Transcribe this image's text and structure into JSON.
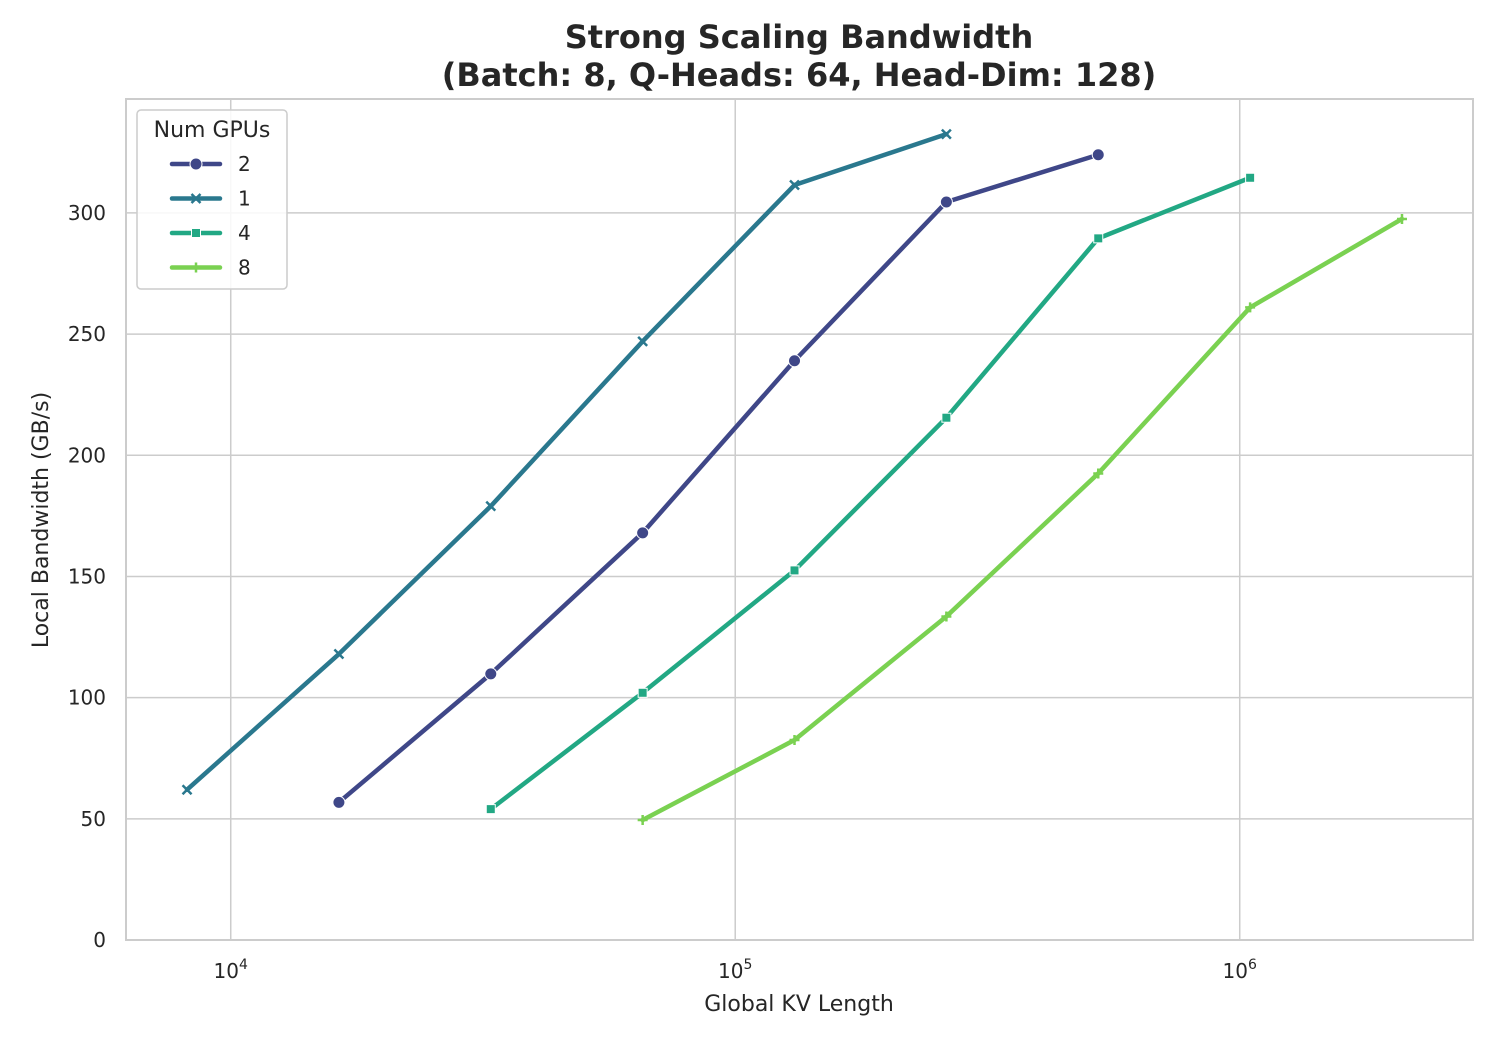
{
  "chart_data": {
    "type": "line",
    "title_lines": [
      "Strong Scaling Bandwidth",
      "(Batch: 8, Q-Heads: 64, Head-Dim: 128)"
    ],
    "xlabel": "Global KV Length",
    "ylabel": "Local Bandwidth (GB/s)",
    "x_scale": "log",
    "xlim": [
      6200,
      2900000
    ],
    "ylim": [
      0,
      347
    ],
    "x_ticks": [
      {
        "value": 10000,
        "base": "10",
        "exp": "4"
      },
      {
        "value": 100000,
        "base": "10",
        "exp": "5"
      },
      {
        "value": 1000000,
        "base": "10",
        "exp": "6"
      }
    ],
    "y_ticks": [
      {
        "value": 0,
        "label": "0"
      },
      {
        "value": 50,
        "label": "50"
      },
      {
        "value": 100,
        "label": "100"
      },
      {
        "value": 150,
        "label": "150"
      },
      {
        "value": 200,
        "label": "200"
      },
      {
        "value": 250,
        "label": "250"
      },
      {
        "value": 300,
        "label": "300"
      }
    ],
    "grid": true,
    "legend": {
      "title": "Num GPUs",
      "placement": "top-left"
    },
    "series": [
      {
        "name": "2",
        "color": "#3f4788",
        "marker": "circle",
        "x": [
          16384,
          32768,
          65536,
          131072,
          262144,
          524288
        ],
        "y": [
          56.8,
          109.8,
          168.0,
          239.0,
          304.5,
          324.0
        ]
      },
      {
        "name": "1",
        "color": "#2a788e",
        "marker": "x",
        "x": [
          8192,
          16384,
          32768,
          65536,
          131072,
          262144
        ],
        "y": [
          62.0,
          118.0,
          179.0,
          247.0,
          311.5,
          332.5
        ]
      },
      {
        "name": "4",
        "color": "#22a884",
        "marker": "square",
        "x": [
          32768,
          65536,
          131072,
          262144,
          524288,
          1048576
        ],
        "y": [
          54.0,
          102.0,
          152.5,
          215.5,
          289.5,
          314.5
        ]
      },
      {
        "name": "8",
        "color": "#7ad151",
        "marker": "plus",
        "x": [
          65536,
          131072,
          262144,
          524288,
          1048576,
          2097152
        ],
        "y": [
          49.5,
          82.5,
          133.5,
          192.5,
          261.0,
          297.5
        ]
      }
    ]
  }
}
